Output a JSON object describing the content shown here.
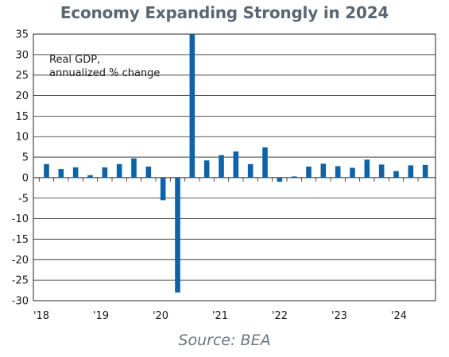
{
  "chart_data": {
    "type": "bar",
    "title": "Economy Expanding Strongly in 2024",
    "source": "Source: BEA",
    "annotation": [
      "Real GDP,",
      "annualized % change"
    ],
    "xlabel": "",
    "ylabel": "",
    "ylim": [
      -30,
      35
    ],
    "yticks": [
      35,
      30,
      25,
      20,
      15,
      10,
      5,
      0,
      -5,
      -10,
      -15,
      -20,
      -25,
      -30
    ],
    "x_tick_labels": [
      "'18",
      "'19",
      "'20",
      "'21",
      "'22",
      "'23",
      "'24"
    ],
    "grid": true,
    "bar_color": "#0e62a8",
    "categories": [
      "2018Q1",
      "2018Q2",
      "2018Q3",
      "2018Q4",
      "2019Q1",
      "2019Q2",
      "2019Q3",
      "2019Q4",
      "2020Q1",
      "2020Q2",
      "2020Q3",
      "2020Q4",
      "2021Q1",
      "2021Q2",
      "2021Q3",
      "2021Q4",
      "2022Q1",
      "2022Q2",
      "2022Q3",
      "2022Q4",
      "2023Q1",
      "2023Q2",
      "2023Q3",
      "2023Q4",
      "2024Q1",
      "2024Q2",
      "2024Q3"
    ],
    "values": [
      3.3,
      2.1,
      2.5,
      0.6,
      2.5,
      3.3,
      4.7,
      2.7,
      -5.5,
      -28.0,
      35.0,
      4.2,
      5.5,
      6.4,
      3.3,
      7.4,
      -1.0,
      0.3,
      2.7,
      3.4,
      2.8,
      2.4,
      4.4,
      3.2,
      1.6,
      3.0,
      3.1
    ]
  }
}
